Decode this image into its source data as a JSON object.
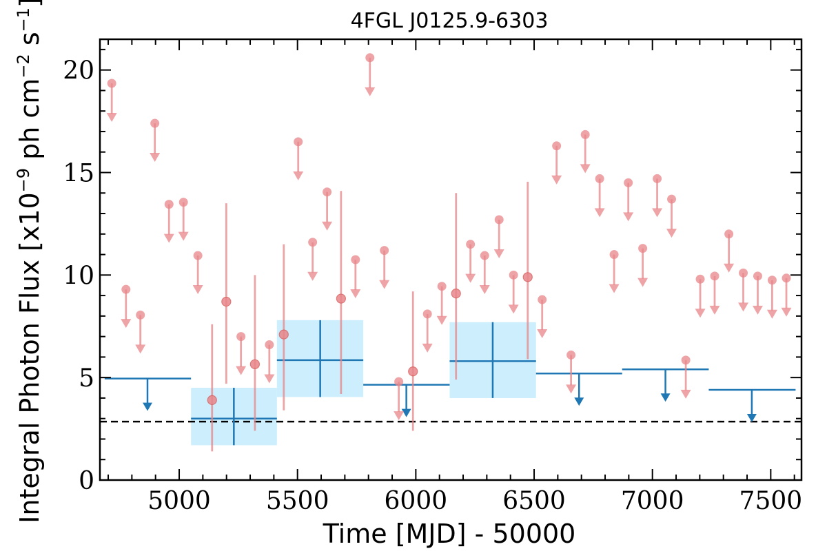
{
  "chart_data": {
    "type": "scatter",
    "title": "4FGL J0125.9-6303",
    "xlabel": "Time [MJD] - 50000",
    "ylabel_parts": {
      "prefix": "Integral Photon Flux [x10",
      "exp1": "−9",
      "mid": " ph cm",
      "exp2": "−2",
      "mid2": " s",
      "exp3": "−1",
      "suffix": "]"
    },
    "xlim": [
      4665,
      7630
    ],
    "ylim": [
      0,
      21.5
    ],
    "x_ticks": [
      5000,
      5500,
      6000,
      6500,
      7000,
      7500
    ],
    "x_tick_labels": [
      "5000",
      "5500",
      "6000",
      "6500",
      "7000",
      "7500"
    ],
    "y_ticks": [
      0,
      5,
      10,
      15,
      20
    ],
    "y_tick_labels": [
      "0",
      "5",
      "10",
      "15",
      "20"
    ],
    "grid": false,
    "reference_line": {
      "y": 2.85,
      "style": "dashed",
      "color": "#000000"
    },
    "colors": {
      "short_bins": "#e8868a",
      "long_bins": "#1f77b4",
      "error_band": "#cdeefd"
    },
    "short_bin_upper_limits": [
      {
        "x": 4715,
        "y": 19.35
      },
      {
        "x": 4775,
        "y": 9.3
      },
      {
        "x": 4836,
        "y": 8.05
      },
      {
        "x": 4897,
        "y": 17.4
      },
      {
        "x": 4957,
        "y": 13.45
      },
      {
        "x": 5018,
        "y": 13.55
      },
      {
        "x": 5079,
        "y": 10.95
      },
      {
        "x": 5261,
        "y": 7.0
      },
      {
        "x": 5381,
        "y": 6.6
      },
      {
        "x": 5503,
        "y": 16.5
      },
      {
        "x": 5564,
        "y": 11.6
      },
      {
        "x": 5625,
        "y": 14.05
      },
      {
        "x": 5745,
        "y": 10.75
      },
      {
        "x": 5806,
        "y": 20.6
      },
      {
        "x": 5867,
        "y": 11.2
      },
      {
        "x": 5928,
        "y": 4.8
      },
      {
        "x": 6049,
        "y": 8.1
      },
      {
        "x": 6110,
        "y": 9.45
      },
      {
        "x": 6231,
        "y": 11.5
      },
      {
        "x": 6291,
        "y": 10.95
      },
      {
        "x": 6352,
        "y": 12.7
      },
      {
        "x": 6413,
        "y": 10.0
      },
      {
        "x": 6534,
        "y": 8.8
      },
      {
        "x": 6595,
        "y": 16.3
      },
      {
        "x": 6656,
        "y": 6.1
      },
      {
        "x": 6716,
        "y": 16.85
      },
      {
        "x": 6777,
        "y": 14.7
      },
      {
        "x": 6838,
        "y": 11.0
      },
      {
        "x": 6898,
        "y": 14.5
      },
      {
        "x": 6959,
        "y": 11.3
      },
      {
        "x": 7020,
        "y": 14.7
      },
      {
        "x": 7081,
        "y": 13.7
      },
      {
        "x": 7141,
        "y": 5.85
      },
      {
        "x": 7202,
        "y": 9.8
      },
      {
        "x": 7263,
        "y": 9.95
      },
      {
        "x": 7323,
        "y": 12.0
      },
      {
        "x": 7384,
        "y": 10.1
      },
      {
        "x": 7445,
        "y": 9.95
      },
      {
        "x": 7506,
        "y": 9.75
      },
      {
        "x": 7566,
        "y": 9.85
      }
    ],
    "short_bin_detections": [
      {
        "x": 5139,
        "y": 3.9,
        "y_low": 1.4,
        "y_high": 7.6
      },
      {
        "x": 5199,
        "y": 8.7,
        "y_low": 4.7,
        "y_high": 13.5
      },
      {
        "x": 5320,
        "y": 5.65,
        "y_low": 2.4,
        "y_high": 10.0
      },
      {
        "x": 5442,
        "y": 7.1,
        "y_low": 3.4,
        "y_high": 11.5
      },
      {
        "x": 5684,
        "y": 8.85,
        "y_low": 4.2,
        "y_high": 14.1
      },
      {
        "x": 5988,
        "y": 5.3,
        "y_low": 2.4,
        "y_high": 9.2
      },
      {
        "x": 6170,
        "y": 9.1,
        "y_low": 4.9,
        "y_high": 14.0
      },
      {
        "x": 6473,
        "y": 9.9,
        "y_low": 5.9,
        "y_high": 14.55
      }
    ],
    "long_bin_upper_limits": [
      {
        "x_start": 4685,
        "x_end": 5050,
        "x": 4866,
        "y": 4.95
      },
      {
        "x_start": 5778,
        "x_end": 6143,
        "x": 5960,
        "y": 4.65
      },
      {
        "x_start": 6508,
        "x_end": 6872,
        "x": 6690,
        "y": 5.2
      },
      {
        "x_start": 6872,
        "x_end": 7238,
        "x": 7055,
        "y": 5.4
      },
      {
        "x_start": 7238,
        "x_end": 7605,
        "x": 7420,
        "y": 4.4
      }
    ],
    "long_bin_detections": [
      {
        "x_start": 5050,
        "x_end": 5413,
        "x": 5231,
        "y": 3.0,
        "y_low": 1.7,
        "y_high": 4.5
      },
      {
        "x_start": 5413,
        "x_end": 5778,
        "x": 5596,
        "y": 5.85,
        "y_low": 4.05,
        "y_high": 7.8
      },
      {
        "x_start": 6143,
        "x_end": 6508,
        "x": 6325,
        "y": 5.8,
        "y_low": 4.0,
        "y_high": 7.7
      }
    ]
  }
}
